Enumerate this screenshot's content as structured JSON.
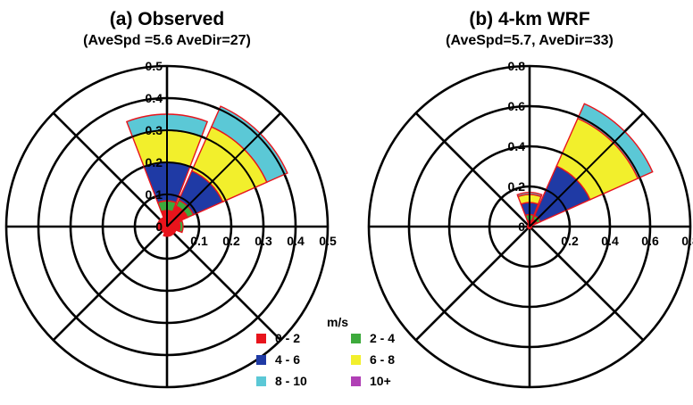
{
  "legend": {
    "title": "m/s",
    "items": [
      {
        "label": "0 - 2",
        "color": "#e8141c"
      },
      {
        "label": "2 - 4",
        "color": "#3daa3c"
      },
      {
        "label": "4 - 6",
        "color": "#1f3aa5"
      },
      {
        "label": "6 - 8",
        "color": "#f2ef2c"
      },
      {
        "label": "8 - 10",
        "color": "#5bc8d6"
      },
      {
        "label": "10+",
        "color": "#b03fb5"
      }
    ]
  },
  "chart_data": [
    {
      "type": "wind-rose",
      "title": "(a) Observed",
      "subtitle": "(AveSpd =5.6 AveDir=27)",
      "radial_max": 0.5,
      "ring_ticks": [
        "0",
        "0.1",
        "0.2",
        "0.3",
        "0.4",
        "0.5"
      ],
      "ring_values": [
        0.1,
        0.2,
        0.3,
        0.4,
        0.5
      ],
      "speed_bins": [
        "0 - 2",
        "2 - 4",
        "4 - 6",
        "6 - 8",
        "8 - 10",
        "10+"
      ],
      "sectors": [
        {
          "direction_deg": 0,
          "cumulative": [
            0.05,
            0.08,
            0.2,
            0.3,
            0.35,
            0.35
          ]
        },
        {
          "direction_deg": 45,
          "cumulative": [
            0.07,
            0.09,
            0.19,
            0.34,
            0.41,
            0.41
          ]
        },
        {
          "direction_deg": 90,
          "cumulative": [
            0.04,
            0.05,
            0.05,
            0.05,
            0.05,
            0.05
          ]
        },
        {
          "direction_deg": 135,
          "cumulative": [
            0.03,
            0.03,
            0.03,
            0.03,
            0.03,
            0.03
          ]
        },
        {
          "direction_deg": 180,
          "cumulative": [
            0.03,
            0.03,
            0.03,
            0.03,
            0.03,
            0.03
          ]
        },
        {
          "direction_deg": 225,
          "cumulative": [
            0.02,
            0.02,
            0.02,
            0.02,
            0.02,
            0.02
          ]
        },
        {
          "direction_deg": 270,
          "cumulative": [
            0.03,
            0.03,
            0.03,
            0.03,
            0.03,
            0.03
          ]
        },
        {
          "direction_deg": 315,
          "cumulative": [
            0.03,
            0.03,
            0.03,
            0.03,
            0.03,
            0.03
          ]
        }
      ]
    },
    {
      "type": "wind-rose",
      "title": "(b) 4-km WRF",
      "subtitle": "(AveSpd=5.7, AveDir=33)",
      "radial_max": 0.8,
      "ring_ticks": [
        "0",
        "0.2",
        "0.4",
        "0.6",
        "0.8"
      ],
      "ring_values": [
        0.2,
        0.4,
        0.6,
        0.8
      ],
      "speed_bins": [
        "0 - 2",
        "2 - 4",
        "4 - 6",
        "6 - 8",
        "8 - 10",
        "10+"
      ],
      "sectors": [
        {
          "direction_deg": 0,
          "cumulative": [
            0.03,
            0.06,
            0.12,
            0.16,
            0.17,
            0.17
          ]
        },
        {
          "direction_deg": 45,
          "cumulative": [
            0.04,
            0.06,
            0.33,
            0.59,
            0.67,
            0.67
          ]
        },
        {
          "direction_deg": 90,
          "cumulative": [
            0.01,
            0.01,
            0.01,
            0.01,
            0.01,
            0.01
          ]
        },
        {
          "direction_deg": 135,
          "cumulative": [
            0.01,
            0.01,
            0.01,
            0.01,
            0.01,
            0.01
          ]
        },
        {
          "direction_deg": 180,
          "cumulative": [
            0.01,
            0.01,
            0.01,
            0.01,
            0.01,
            0.01
          ]
        },
        {
          "direction_deg": 225,
          "cumulative": [
            0.01,
            0.01,
            0.01,
            0.01,
            0.01,
            0.01
          ]
        },
        {
          "direction_deg": 270,
          "cumulative": [
            0.01,
            0.01,
            0.01,
            0.01,
            0.01,
            0.01
          ]
        },
        {
          "direction_deg": 315,
          "cumulative": [
            0.01,
            0.01,
            0.01,
            0.01,
            0.01,
            0.01
          ]
        }
      ]
    }
  ]
}
